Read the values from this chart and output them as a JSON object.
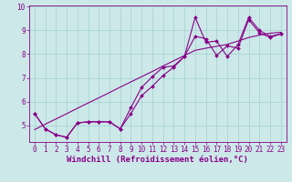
{
  "xlabel": "Windchill (Refroidissement éolien,°C)",
  "bg_color": "#cce8e8",
  "line_color": "#880088",
  "x_data": [
    0,
    1,
    2,
    3,
    4,
    5,
    6,
    7,
    8,
    9,
    10,
    11,
    12,
    13,
    14,
    15,
    16,
    17,
    18,
    19,
    20,
    21,
    22,
    23
  ],
  "y_line1": [
    5.5,
    4.85,
    4.6,
    4.5,
    5.1,
    5.15,
    5.15,
    5.15,
    4.85,
    5.75,
    6.6,
    7.05,
    7.45,
    7.5,
    7.9,
    9.55,
    8.5,
    8.55,
    7.9,
    8.4,
    9.55,
    9.0,
    8.75,
    8.85
  ],
  "y_line2": [
    5.5,
    4.85,
    4.6,
    4.5,
    5.1,
    5.15,
    5.15,
    5.15,
    4.85,
    5.5,
    6.25,
    6.65,
    7.1,
    7.45,
    7.9,
    8.75,
    8.65,
    7.95,
    8.35,
    8.25,
    9.45,
    8.9,
    8.7,
    8.85
  ],
  "y_regression": [
    4.82,
    5.05,
    5.27,
    5.49,
    5.72,
    5.94,
    6.16,
    6.38,
    6.61,
    6.83,
    7.05,
    7.27,
    7.5,
    7.72,
    7.94,
    8.16,
    8.25,
    8.33,
    8.41,
    8.55,
    8.7,
    8.8,
    8.88,
    8.92
  ],
  "ylim": [
    4.3,
    10.05
  ],
  "xlim": [
    -0.5,
    23.5
  ],
  "yticks": [
    5,
    6,
    7,
    8,
    9,
    10
  ],
  "xticks": [
    0,
    1,
    2,
    3,
    4,
    5,
    6,
    7,
    8,
    9,
    10,
    11,
    12,
    13,
    14,
    15,
    16,
    17,
    18,
    19,
    20,
    21,
    22,
    23
  ],
  "grid_color": "#aad4d4",
  "label_color": "#880088",
  "tick_fontsize": 5.5,
  "xlabel_fontsize": 6.5,
  "marker_size": 2.0,
  "line_width": 0.8
}
